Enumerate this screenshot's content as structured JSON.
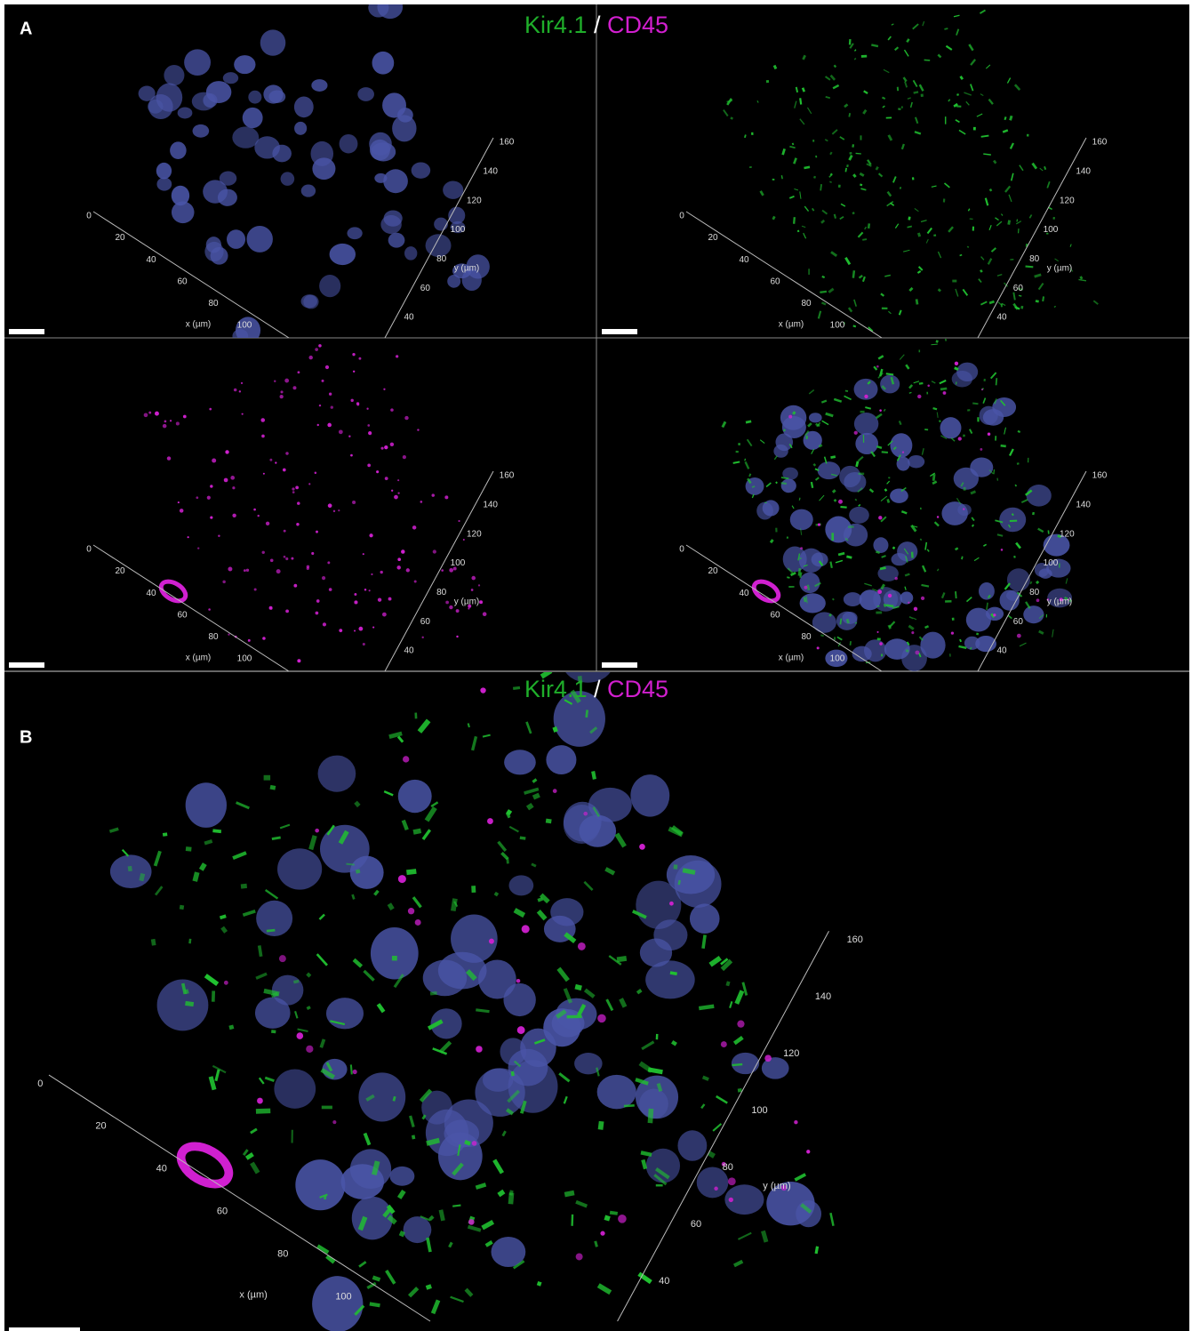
{
  "panel_a": {
    "label": "A",
    "title": {
      "marker_1": "Kir4.1",
      "separator": "/",
      "marker_2": "CD45"
    },
    "axes": {
      "x_label": "x (µm)",
      "y_label": "y (µm)",
      "x_ticks": [
        0,
        20,
        40,
        60,
        80,
        100
      ],
      "y_ticks": [
        40,
        60,
        80,
        100,
        120,
        140,
        160
      ]
    }
  },
  "panel_b": {
    "label": "B",
    "title": {
      "marker_1": "Kir4.1",
      "separator": "/",
      "marker_2": "CD45"
    },
    "axes": {
      "x_label": "x (µm)",
      "y_label": "y (µm)",
      "x_ticks": [
        0,
        20,
        40,
        60,
        80,
        100
      ],
      "y_ticks": [
        40,
        60,
        80,
        100,
        120,
        140,
        160
      ]
    }
  }
}
